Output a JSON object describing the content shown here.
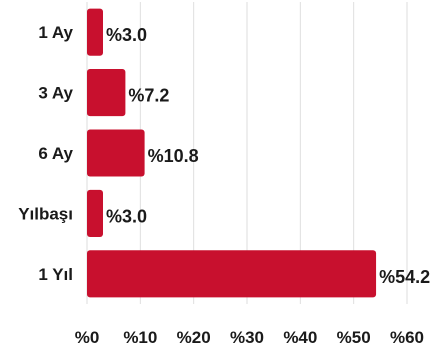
{
  "chart_data": {
    "type": "bar",
    "orientation": "horizontal",
    "categories": [
      "1 Ay",
      "3 Ay",
      "6 Ay",
      "Yılbaşı",
      "1 Yıl"
    ],
    "values": [
      3.0,
      7.2,
      10.8,
      3.0,
      54.2
    ],
    "value_labels": [
      "%3.0",
      "%7.2",
      "%10.8",
      "%3.0",
      "%54.2"
    ],
    "x_ticks": [
      0,
      10,
      20,
      30,
      40,
      50,
      60
    ],
    "x_tick_labels": [
      "%0",
      "%10",
      "%20",
      "%30",
      "%40",
      "%50",
      "%60"
    ],
    "xlim": [
      0,
      60
    ],
    "grid": true,
    "bar_color": "#c8102e",
    "title": "",
    "xlabel": "",
    "ylabel": ""
  }
}
